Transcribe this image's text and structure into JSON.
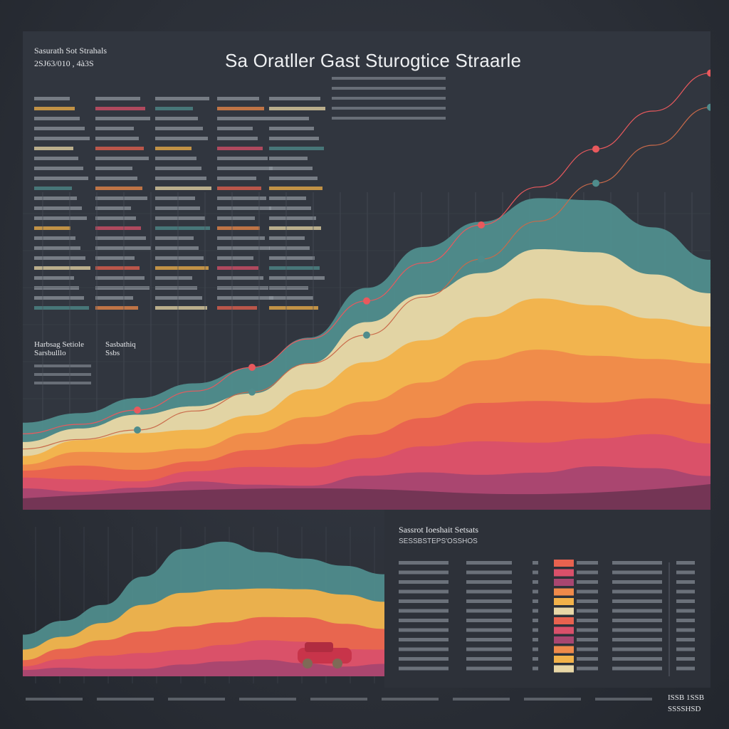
{
  "title": "Sa Oratller Gast Sturogtice Straarle",
  "top_left": {
    "heading": "Sasurath Sot Strahals",
    "sub": "2SJ63/010 , 4à3S"
  },
  "mid_left": {
    "heading": "Harbsag Setiole",
    "sub": "Sarsbulllo",
    "heading2": "Sasbathiq",
    "sub2": "Ssbs"
  },
  "right_panel": {
    "title": "Sassrot Ioeshait Setsats",
    "sub": "SESSBSTEPS'OSSHOS"
  },
  "bottom_right": {
    "top": "ISSB 1SSB",
    "bottom": "SSSSHSD"
  },
  "colors": {
    "background": "#2b2f37",
    "teal": "#4f8c8c",
    "cream": "#e8d7a6",
    "yellow": "#f2b24a",
    "orange": "#ef8a4a",
    "coral": "#e8624f",
    "pink": "#d9506a",
    "magenta": "#a84670",
    "plum": "#6e3352",
    "marker": "#e9595d"
  },
  "chart_data": [
    {
      "type": "area",
      "title": "Sa Oratller Gast Sturogtice Straarle",
      "xlabel": "",
      "ylabel": "",
      "x": [
        0,
        1,
        2,
        3,
        4,
        5,
        6,
        7,
        8,
        9,
        10,
        11,
        12
      ],
      "series": [
        {
          "values": [
            8,
            9,
            10,
            10,
            12,
            15,
            18,
            22,
            26,
            28,
            26,
            22,
            18
          ]
        },
        {
          "values": [
            7,
            8,
            9,
            10,
            12,
            15,
            19,
            22,
            24,
            26,
            25,
            22,
            19
          ]
        },
        {
          "values": [
            6,
            7,
            8,
            9,
            11,
            14,
            18,
            22,
            24,
            25,
            24,
            22,
            20
          ]
        },
        {
          "values": [
            5,
            6,
            7,
            8,
            10,
            12,
            16,
            20,
            22,
            24,
            24,
            22,
            20
          ]
        },
        {
          "values": [
            4,
            5,
            6,
            7,
            8,
            10,
            13,
            16,
            18,
            20,
            20,
            19,
            18
          ]
        },
        {
          "values": [
            4,
            5,
            5,
            6,
            7,
            9,
            11,
            13,
            15,
            16,
            16,
            16,
            15
          ]
        },
        {
          "values": [
            3,
            4,
            4,
            5,
            6,
            7,
            9,
            10,
            12,
            13,
            13,
            13,
            12
          ]
        }
      ],
      "trend_lines": [
        {
          "values": [
            10,
            12,
            15,
            19,
            24,
            30,
            38,
            46,
            54,
            62,
            70,
            78,
            86
          ]
        },
        {
          "values": [
            8,
            10,
            12,
            16,
            20,
            26,
            32,
            40,
            48,
            56,
            64,
            72,
            80
          ]
        }
      ]
    },
    {
      "type": "area",
      "title": "",
      "xlabel": "",
      "ylabel": "",
      "x": [
        0,
        1,
        2,
        3,
        4,
        5,
        6,
        7,
        8,
        9
      ],
      "series": [
        {
          "values": [
            6,
            8,
            10,
            14,
            20,
            22,
            18,
            16,
            14,
            12
          ]
        },
        {
          "values": [
            5,
            7,
            9,
            12,
            15,
            16,
            15,
            14,
            13,
            12
          ]
        },
        {
          "values": [
            4,
            6,
            7,
            9,
            11,
            12,
            12,
            11,
            11,
            10
          ]
        },
        {
          "values": [
            3,
            4,
            5,
            7,
            8,
            9,
            9,
            9,
            8,
            8
          ]
        },
        {
          "values": [
            2,
            3,
            4,
            5,
            6,
            6,
            7,
            7,
            6,
            6
          ]
        }
      ]
    }
  ]
}
